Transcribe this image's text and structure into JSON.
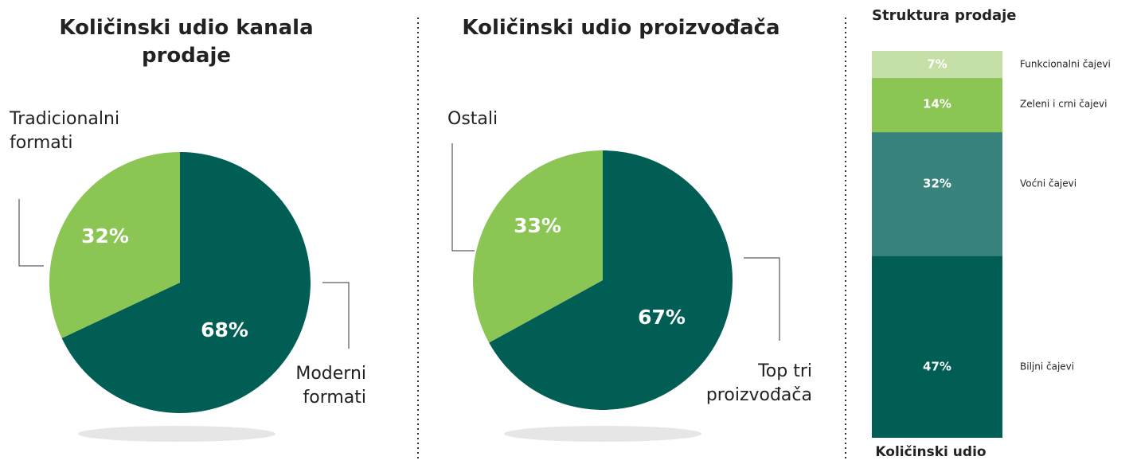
{
  "chart_data": [
    {
      "type": "pie",
      "title": "Količinski udio kanala prodaje",
      "categories": [
        "Moderni formati",
        "Tradicionalni formati"
      ],
      "values": [
        68,
        32
      ],
      "value_labels": [
        "68%",
        "32%"
      ],
      "colors": [
        "#005e54",
        "#8bc554"
      ]
    },
    {
      "type": "pie",
      "title": "Količinski udio proizvođača",
      "categories": [
        "Top tri proizvođača",
        "Ostali"
      ],
      "values": [
        67,
        33
      ],
      "value_labels": [
        "67%",
        "33%"
      ],
      "colors": [
        "#005e54",
        "#8bc554"
      ]
    },
    {
      "type": "stacked_bar",
      "title": "Struktura prodaje",
      "categories": [
        "Količinski udio"
      ],
      "series": [
        {
          "name": "Biljni čajevi",
          "color": "#005e54",
          "values": [
            47
          ],
          "value_labels": [
            "47%"
          ]
        },
        {
          "name": "Voćni čajevi",
          "color": "#38837b",
          "values": [
            32
          ],
          "value_labels": [
            "32%"
          ]
        },
        {
          "name": "Zeleni i crni čajevi",
          "color": "#8bc554",
          "values": [
            14
          ],
          "value_labels": [
            "14%"
          ]
        },
        {
          "name": "Funkcionalni čajevi",
          "color": "#c4e0a6",
          "values": [
            7
          ],
          "value_labels": [
            "7%"
          ]
        }
      ]
    }
  ]
}
